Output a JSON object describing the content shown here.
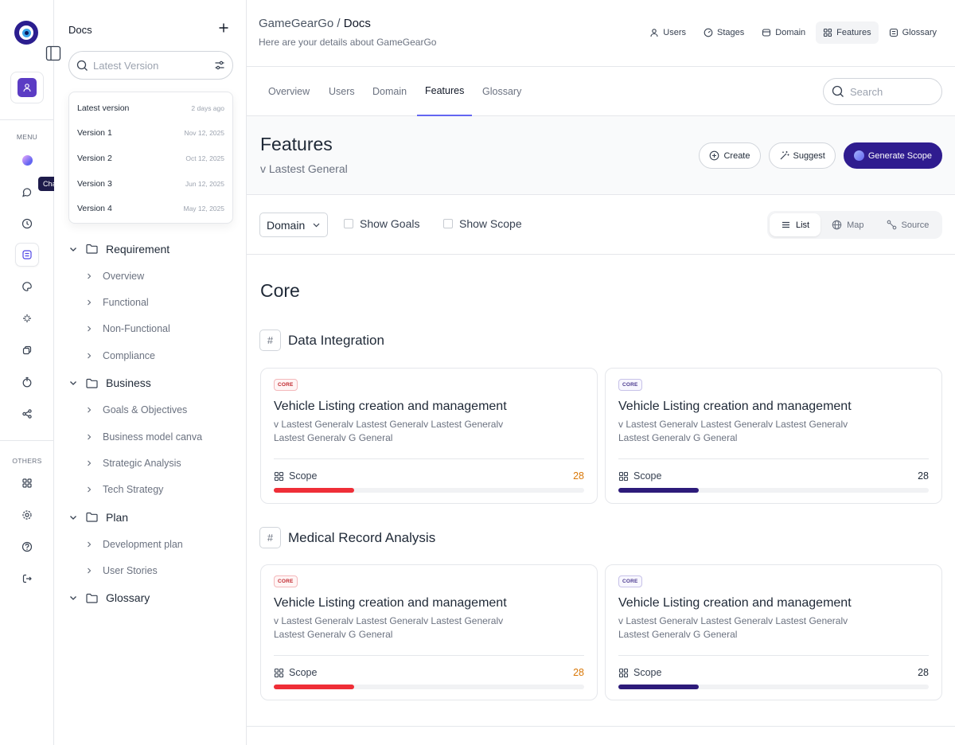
{
  "rail": {
    "menu_label": "MENU",
    "others_label": "OTHERS",
    "tooltip": "Chat",
    "menu_icons": [
      "gradient-dot-icon",
      "chat-icon",
      "clock-icon",
      "document-icon",
      "palette-icon",
      "sparkle-icon",
      "tag-icon",
      "timer-icon",
      "share-icon"
    ],
    "other_icons": [
      "grid-icon",
      "gear-icon",
      "help-icon",
      "logout-icon"
    ]
  },
  "sidebar": {
    "title": "Docs",
    "search_placeholder": "Latest Version",
    "versions": [
      {
        "name": "Latest version",
        "date": "2 days ago"
      },
      {
        "name": "Version 1",
        "date": "Nov 12, 2025"
      },
      {
        "name": "Version 2",
        "date": "Oct 12, 2025"
      },
      {
        "name": "Version 3",
        "date": "Jun 12, 2025"
      },
      {
        "name": "Version 4",
        "date": "May 12, 2025"
      }
    ],
    "tree": [
      {
        "label": "Requirement",
        "children": [
          "Overview",
          "Functional",
          "Non-Functional",
          "Compliance"
        ]
      },
      {
        "label": "Business",
        "children": [
          "Goals & Objectives",
          "Business model canva",
          "Strategic Analysis",
          "Tech Strategy"
        ]
      },
      {
        "label": "Plan",
        "children": [
          "Development plan",
          "User Stories"
        ]
      },
      {
        "label": "Glossary",
        "children": []
      }
    ]
  },
  "header": {
    "project": "GameGearGo",
    "separator": "/",
    "page": "Docs",
    "subtitle": "Here are your details about GameGearGo",
    "nav": [
      {
        "label": "Users",
        "icon": "user-icon",
        "active": false
      },
      {
        "label": "Stages",
        "icon": "stages-icon",
        "active": false
      },
      {
        "label": "Domain",
        "icon": "domain-icon",
        "active": false
      },
      {
        "label": "Features",
        "icon": "grid-icon",
        "active": true
      },
      {
        "label": "Glossary",
        "icon": "glossary-icon",
        "active": false
      }
    ]
  },
  "tabs": [
    {
      "label": "Overview"
    },
    {
      "label": "Users"
    },
    {
      "label": "Domain"
    },
    {
      "label": "Features",
      "active": true
    },
    {
      "label": "Glossary"
    }
  ],
  "search": {
    "placeholder": "Search"
  },
  "features": {
    "title": "Features",
    "subtitle": "v Lastest General",
    "create_label": "Create",
    "suggest_label": "Suggest",
    "generate_label": "Generate Scope"
  },
  "filters": {
    "domain_select": "Domain",
    "show_goals": "Show Goals",
    "show_scope": "Show Scope",
    "views": [
      {
        "label": "List",
        "active": true
      },
      {
        "label": "Map"
      },
      {
        "label": "Source"
      }
    ]
  },
  "content": {
    "section_title": "Core",
    "groups": [
      {
        "title": "Data Integration",
        "cards": [
          {
            "badge": "CORE",
            "title": "Vehicle Listing creation and management",
            "desc": "v Lastest Generalv Lastest Generalv Lastest Generalv Lastest Generalv G General",
            "scope_label": "Scope",
            "count": "28",
            "progress": 0.26,
            "theme": "red"
          },
          {
            "badge": "CORE",
            "title": "Vehicle Listing creation and management",
            "desc": "v Lastest Generalv Lastest Generalv Lastest Generalv Lastest Generalv G General",
            "scope_label": "Scope",
            "count": "28",
            "progress": 0.26,
            "theme": "purple"
          }
        ]
      },
      {
        "title": "Medical Record Analysis",
        "cards": [
          {
            "badge": "CORE",
            "title": "Vehicle Listing creation and management",
            "desc": "v Lastest Generalv Lastest Generalv Lastest Generalv Lastest Generalv G General",
            "scope_label": "Scope",
            "count": "28",
            "progress": 0.26,
            "theme": "red"
          },
          {
            "badge": "CORE",
            "title": "Vehicle Listing creation and management",
            "desc": "v Lastest Generalv Lastest Generalv Lastest Generalv Lastest Generalv G General",
            "scope_label": "Scope",
            "count": "28",
            "progress": 0.26,
            "theme": "purple"
          }
        ]
      }
    ]
  }
}
